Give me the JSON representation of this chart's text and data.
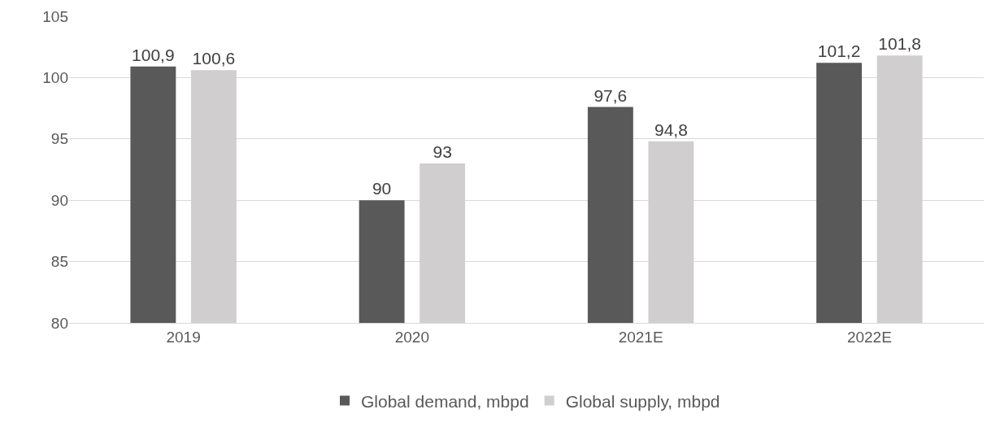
{
  "chart_data": {
    "type": "bar",
    "categories": [
      "2019",
      "2020",
      "2021E",
      "2022E"
    ],
    "series": [
      {
        "name": "Global demand, mbpd",
        "color": "#595959",
        "values": [
          100.9,
          90,
          97.6,
          101.2
        ],
        "value_labels": [
          "100,9",
          "90",
          "97,6",
          "101,2"
        ]
      },
      {
        "name": "Global supply, mbpd",
        "color": "#d0cece",
        "values": [
          100.6,
          93,
          94.8,
          101.8
        ],
        "value_labels": [
          "100,6",
          "93",
          "94,8",
          "101,8"
        ]
      }
    ],
    "ylim": [
      80,
      105
    ],
    "yticks": [
      80,
      85,
      90,
      95,
      100,
      105
    ],
    "grid": "y",
    "legend": "bottom"
  }
}
